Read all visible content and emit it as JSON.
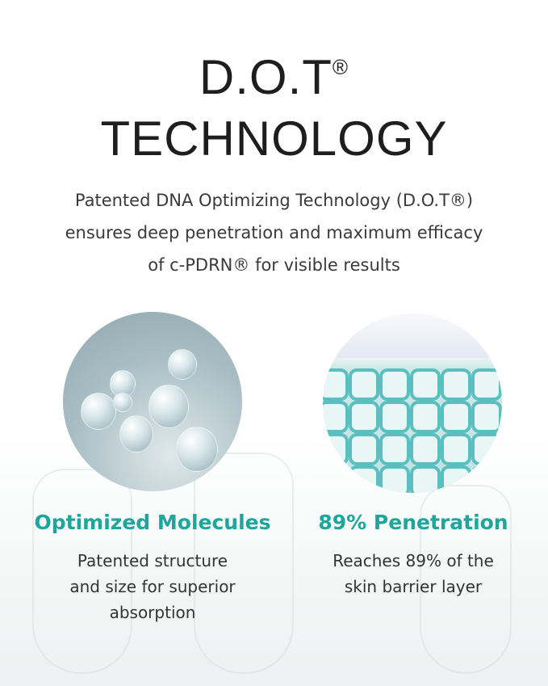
{
  "title": {
    "line1": "D.O.T",
    "registered": "®",
    "line2": "TECHNOLOGY"
  },
  "intro": [
    "Patented DNA Optimizing Technology (D.O.T®)",
    "ensures deep penetration and maximum efficacy",
    "of c-PDRN® for visible results"
  ],
  "colors": {
    "accent": "#1ea59c",
    "title": "#1e1e1e"
  },
  "features": [
    {
      "icon": "molecule-image",
      "heading": "Optimized Molecules",
      "description": [
        "Patented structure",
        "and size for superior",
        "absorption"
      ]
    },
    {
      "icon": "skin-cell-grid-image",
      "heading": "89% Penetration",
      "description": [
        "Reaches 89% of the",
        "skin barrier layer"
      ]
    }
  ]
}
